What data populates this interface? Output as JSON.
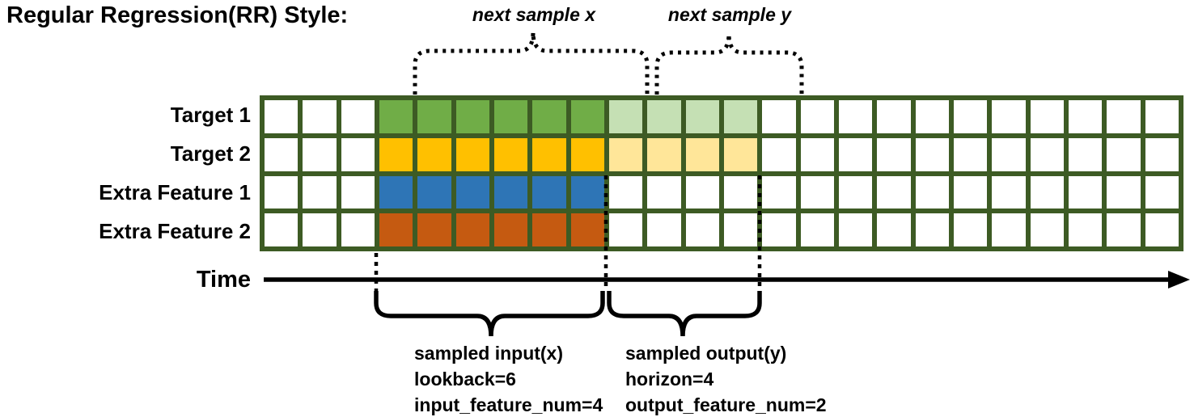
{
  "title": "Regular Regression(RR) Style:",
  "annotations": {
    "next_sample_x": "next sample x",
    "next_sample_y": "next sample y"
  },
  "time_axis": {
    "label": "Time"
  },
  "grid": {
    "columns": 24,
    "border_color": "#3D5B24",
    "palette": {
      "white": "#FFFFFF",
      "green": "#70AD47",
      "light_green": "#C5E0B4",
      "gold": "#FFC000",
      "light_gold": "#FFE699",
      "blue": "#2E75B6",
      "orange": "#C55A11"
    },
    "rows": [
      {
        "label": "Target 1",
        "cells": [
          "white",
          "white",
          "white",
          "green",
          "green",
          "green",
          "green",
          "green",
          "green",
          "light_green",
          "light_green",
          "light_green",
          "light_green",
          "white",
          "white",
          "white",
          "white",
          "white",
          "white",
          "white",
          "white",
          "white",
          "white",
          "white"
        ]
      },
      {
        "label": "Target 2",
        "cells": [
          "white",
          "white",
          "white",
          "gold",
          "gold",
          "gold",
          "gold",
          "gold",
          "gold",
          "light_gold",
          "light_gold",
          "light_gold",
          "light_gold",
          "white",
          "white",
          "white",
          "white",
          "white",
          "white",
          "white",
          "white",
          "white",
          "white",
          "white"
        ]
      },
      {
        "label": "Extra Feature 1",
        "cells": [
          "white",
          "white",
          "white",
          "blue",
          "blue",
          "blue",
          "blue",
          "blue",
          "blue",
          "white",
          "white",
          "white",
          "white",
          "white",
          "white",
          "white",
          "white",
          "white",
          "white",
          "white",
          "white",
          "white",
          "white",
          "white"
        ]
      },
      {
        "label": "Extra Feature 2",
        "cells": [
          "white",
          "white",
          "white",
          "orange",
          "orange",
          "orange",
          "orange",
          "orange",
          "orange",
          "white",
          "white",
          "white",
          "white",
          "white",
          "white",
          "white",
          "white",
          "white",
          "white",
          "white",
          "white",
          "white",
          "white",
          "white"
        ]
      }
    ]
  },
  "input_annotation": {
    "lines": [
      "sampled input(x)",
      "lookback=6",
      "input_feature_num=4"
    ]
  },
  "output_annotation": {
    "lines": [
      "sampled output(y)",
      "horizon=4",
      "output_feature_num=2"
    ]
  },
  "line_color": "#000000"
}
